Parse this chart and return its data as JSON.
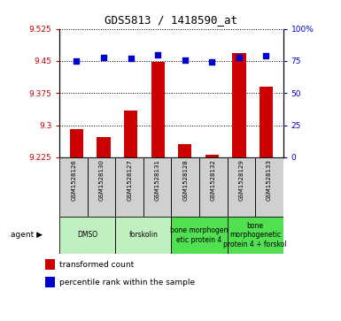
{
  "title": "GDS5813 / 1418590_at",
  "samples": [
    "GSM1528126",
    "GSM1528130",
    "GSM1528127",
    "GSM1528131",
    "GSM1528128",
    "GSM1528132",
    "GSM1528129",
    "GSM1528133"
  ],
  "transformed_counts": [
    9.291,
    9.272,
    9.335,
    9.448,
    9.255,
    9.23,
    9.468,
    9.39
  ],
  "percentile_ranks": [
    75,
    78,
    77,
    80,
    76,
    74,
    78,
    79
  ],
  "ylim_left": [
    9.225,
    9.525
  ],
  "ylim_right": [
    0,
    100
  ],
  "yticks_left": [
    9.225,
    9.3,
    9.375,
    9.45,
    9.525
  ],
  "yticks_right": [
    0,
    25,
    50,
    75,
    100
  ],
  "ytick_labels_left": [
    "9.225",
    "9.3",
    "9.375",
    "9.45",
    "9.525"
  ],
  "ytick_labels_right": [
    "0",
    "25",
    "50",
    "75",
    "100%"
  ],
  "agent_groups": [
    {
      "label": "DMSO",
      "start": 0,
      "end": 2,
      "color": "#c0f0c0"
    },
    {
      "label": "forskolin",
      "start": 2,
      "end": 4,
      "color": "#c0f0c0"
    },
    {
      "label": "bone morphogen\netic protein 4",
      "start": 4,
      "end": 6,
      "color": "#50e050"
    },
    {
      "label": "bone\nmorphogenetic\nprotein 4 + forskol",
      "start": 6,
      "end": 8,
      "color": "#50e050"
    }
  ],
  "bar_color": "#cc0000",
  "dot_color": "#0000cc",
  "bar_width": 0.5,
  "dot_size": 18,
  "background_color": "#ffffff",
  "plot_bg_color": "#ffffff",
  "grid_color": "#000000",
  "sample_box_color": "#d0d0d0",
  "agent_label": "agent",
  "legend_items": [
    "transformed count",
    "percentile rank within the sample"
  ]
}
